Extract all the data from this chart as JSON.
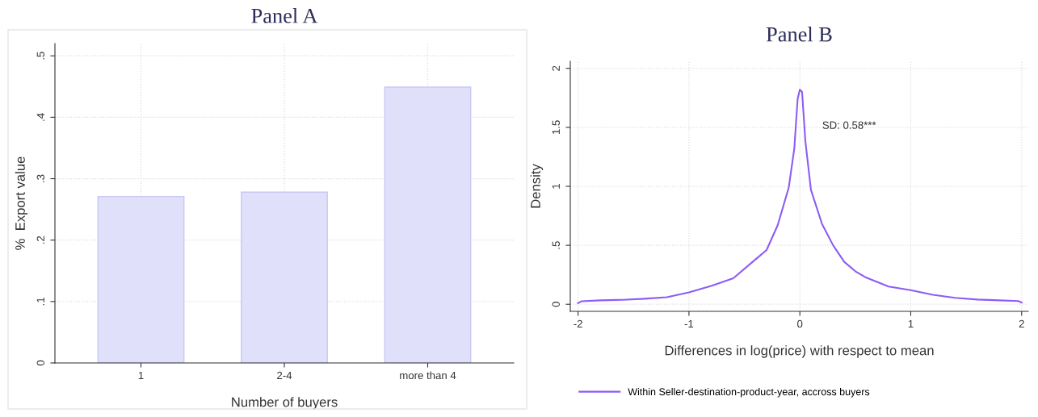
{
  "chart_data": [
    {
      "type": "bar",
      "title": "Panel A",
      "xlabel": "Number of buyers",
      "ylabel": "%  Export value",
      "categories": [
        "1",
        "2-4",
        "more than 4"
      ],
      "values": [
        0.271,
        0.278,
        0.449
      ],
      "color": "#e0e0fa",
      "ylim": [
        0,
        0.52
      ],
      "yticks": [
        {
          "value": 0,
          "label": "0"
        },
        {
          "value": 0.1,
          "label": ".1"
        },
        {
          "value": 0.2,
          "label": ".2"
        },
        {
          "value": 0.3,
          "label": ".3"
        },
        {
          "value": 0.4,
          "label": ".4"
        },
        {
          "value": 0.5,
          "label": ".5"
        }
      ],
      "grid": true
    },
    {
      "type": "line",
      "title": "Panel B",
      "xlabel": "Differences in log(price) with respect to mean",
      "ylabel": "Density",
      "annotations": [
        "SD: 0.58***"
      ],
      "legend": "bottom",
      "grid": true,
      "xlim": [
        -2.07,
        2.06
      ],
      "ylim": [
        -0.06,
        2.06
      ],
      "xticks": [
        -2,
        -1,
        0,
        1,
        2
      ],
      "yticks": [
        0,
        {
          "value": 0.5,
          "label": ".5"
        },
        1,
        1.5,
        2
      ],
      "series": [
        {
          "name": "Within Seller-destination-product-year, accross buyers",
          "color": "#8c5cf5",
          "x": [
            -2,
            -1.97,
            -1.8,
            -1.6,
            -1.4,
            -1.2,
            -1,
            -0.8,
            -0.6,
            -0.4,
            -0.3,
            -0.2,
            -0.1,
            -0.05,
            -0.02,
            0,
            0.02,
            0.05,
            0.1,
            0.2,
            0.3,
            0.4,
            0.5,
            0.6,
            0.8,
            1,
            1.2,
            1.4,
            1.6,
            1.8,
            1.97,
            2
          ],
          "values": [
            0.01,
            0.025,
            0.033,
            0.038,
            0.047,
            0.06,
            0.1,
            0.155,
            0.22,
            0.38,
            0.46,
            0.67,
            0.99,
            1.32,
            1.74,
            1.82,
            1.8,
            1.38,
            0.97,
            0.68,
            0.5,
            0.36,
            0.28,
            0.225,
            0.15,
            0.12,
            0.08,
            0.055,
            0.04,
            0.033,
            0.027,
            0.015
          ]
        }
      ]
    }
  ]
}
